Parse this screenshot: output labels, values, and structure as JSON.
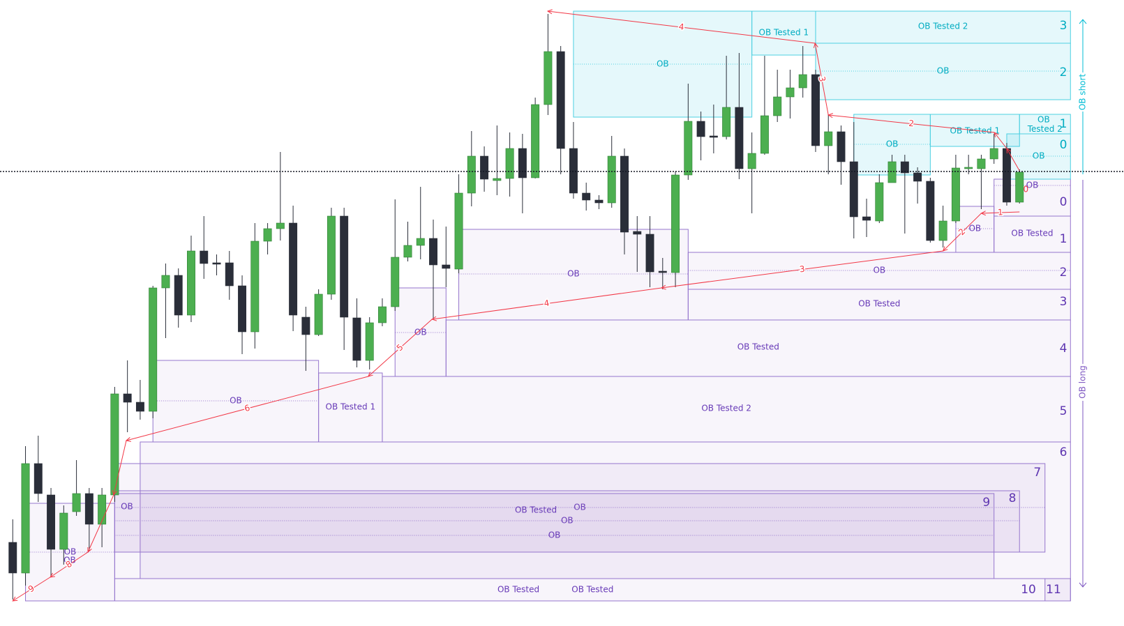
{
  "chart_data": {
    "type": "candlestick",
    "up_color": "#4caf50",
    "down_color": "#2a2e39",
    "xlim": [
      -1,
      87.2
    ],
    "ylim": [
      2,
      900
    ],
    "last_price": 654,
    "side_labels": {
      "short": "OB short",
      "long": "OB long"
    },
    "candles": [
      [
        122,
        155,
        40,
        78
      ],
      [
        78,
        260,
        60,
        235
      ],
      [
        235,
        275,
        180,
        192
      ],
      [
        190,
        200,
        72,
        112
      ],
      [
        112,
        175,
        90,
        164
      ],
      [
        166,
        240,
        160,
        192
      ],
      [
        192,
        200,
        110,
        148
      ],
      [
        148,
        200,
        115,
        190
      ],
      [
        190,
        345,
        180,
        335
      ],
      [
        335,
        383,
        280,
        323
      ],
      [
        323,
        355,
        298,
        310
      ],
      [
        310,
        490,
        300,
        487
      ],
      [
        487,
        522,
        415,
        505
      ],
      [
        505,
        515,
        430,
        448
      ],
      [
        448,
        562,
        438,
        540
      ],
      [
        540,
        590,
        500,
        522
      ],
      [
        523,
        535,
        505,
        521
      ],
      [
        523,
        540,
        470,
        490
      ],
      [
        490,
        505,
        392,
        424
      ],
      [
        424,
        580,
        400,
        554
      ],
      [
        554,
        580,
        535,
        572
      ],
      [
        572,
        682,
        555,
        580
      ],
      [
        580,
        605,
        425,
        448
      ],
      [
        445,
        460,
        368,
        420
      ],
      [
        420,
        485,
        418,
        478
      ],
      [
        478,
        602,
        470,
        590
      ],
      [
        590,
        602,
        398,
        445
      ],
      [
        444,
        472,
        373,
        383
      ],
      [
        383,
        445,
        370,
        437
      ],
      [
        437,
        472,
        432,
        460
      ],
      [
        460,
        614,
        454,
        531
      ],
      [
        531,
        582,
        525,
        548
      ],
      [
        548,
        632,
        528,
        558
      ],
      [
        558,
        585,
        442,
        520
      ],
      [
        520,
        575,
        488,
        515
      ],
      [
        514,
        650,
        508,
        623
      ],
      [
        623,
        712,
        604,
        676
      ],
      [
        676,
        690,
        625,
        643
      ],
      [
        641,
        720,
        620,
        644
      ],
      [
        644,
        710,
        618,
        687
      ],
      [
        687,
        708,
        594,
        645
      ],
      [
        645,
        760,
        644,
        750
      ],
      [
        750,
        880,
        735,
        826
      ],
      [
        826,
        834,
        650,
        687
      ],
      [
        687,
        725,
        615,
        623
      ],
      [
        623,
        638,
        598,
        613
      ],
      [
        613,
        620,
        600,
        609
      ],
      [
        609,
        705,
        602,
        676
      ],
      [
        676,
        687,
        535,
        567
      ],
      [
        568,
        590,
        510,
        564
      ],
      [
        564,
        590,
        488,
        510
      ],
      [
        511,
        530,
        485,
        509
      ],
      [
        509,
        654,
        488,
        649
      ],
      [
        649,
        780,
        642,
        726
      ],
      [
        726,
        740,
        670,
        704
      ],
      [
        705,
        750,
        680,
        703
      ],
      [
        704,
        820,
        700,
        746
      ],
      [
        746,
        824,
        643,
        658
      ],
      [
        658,
        710,
        594,
        680
      ],
      [
        680,
        820,
        678,
        734
      ],
      [
        734,
        800,
        725,
        761
      ],
      [
        761,
        800,
        730,
        774
      ],
      [
        774,
        834,
        760,
        793
      ],
      [
        793,
        800,
        682,
        691
      ],
      [
        691,
        735,
        650,
        711
      ],
      [
        711,
        720,
        635,
        668
      ],
      [
        668,
        725,
        558,
        589
      ],
      [
        589,
        615,
        560,
        584
      ],
      [
        583,
        650,
        580,
        638
      ],
      [
        638,
        678,
        638,
        668
      ],
      [
        668,
        678,
        565,
        652
      ],
      [
        652,
        660,
        608,
        640
      ],
      [
        640,
        645,
        552,
        555
      ],
      [
        555,
        605,
        545,
        583
      ],
      [
        583,
        678,
        580,
        659
      ],
      [
        658,
        678,
        650,
        660
      ],
      [
        658,
        678,
        600,
        672
      ],
      [
        672,
        708,
        665,
        687
      ],
      [
        687,
        695,
        605,
        610
      ],
      [
        610,
        657,
        608,
        653
      ]
    ],
    "zones": [
      {
        "side": "long",
        "x0": 10,
        "x1": 83,
        "top": 266,
        "bottom": 70
      },
      {
        "side": "long",
        "x0": 8,
        "x1": 81,
        "top": 235,
        "bottom": 108,
        "label": "OB",
        "mid": 172
      },
      {
        "side": "long",
        "x0": 8,
        "x1": 79,
        "top": 196,
        "bottom": 108,
        "label": "OB",
        "mid": 153
      },
      {
        "side": "long",
        "x0": 8,
        "x1": 77,
        "top": 192,
        "bottom": 70,
        "label": "OB",
        "mid": 132
      },
      {
        "side": "long",
        "x0": 1,
        "x1": 8,
        "top": 178,
        "bottom": 38,
        "label": "OB",
        "mid": 108
      },
      {
        "side": "long",
        "x0": 8,
        "x1": 83,
        "top": 70,
        "bottom": 38,
        "label": "OB Tested",
        "mid": 54
      },
      {
        "side": "long",
        "x0": 81,
        "x1": 83,
        "top": 70,
        "bottom": 38
      },
      {
        "side": "long",
        "x0": 11,
        "x1": 24,
        "top": 383,
        "bottom": 266,
        "label": "OB",
        "mid": 325
      },
      {
        "side": "long",
        "x0": 24,
        "x1": 29,
        "top": 365,
        "bottom": 266,
        "label": "OB Tested 1",
        "mid": 316
      },
      {
        "side": "long",
        "x0": 29,
        "x1": 83,
        "top": 360,
        "bottom": 266,
        "label": "OB Tested 2",
        "mid": 314
      },
      {
        "side": "long",
        "x0": 30,
        "x1": 34,
        "top": 487,
        "bottom": 360,
        "label": "OB",
        "mid": 423
      },
      {
        "side": "long",
        "x0": 34,
        "x1": 83,
        "top": 441,
        "bottom": 360,
        "label": "OB Tested",
        "mid": 402
      },
      {
        "side": "long",
        "x0": 35,
        "x1": 53,
        "top": 571,
        "bottom": 441,
        "label": "OB",
        "mid": 507
      },
      {
        "side": "long",
        "x0": 53,
        "x1": 83,
        "top": 538,
        "bottom": 485,
        "label": "OB",
        "mid": 512
      },
      {
        "side": "long",
        "x0": 53,
        "x1": 83,
        "top": 485,
        "bottom": 441,
        "label": "OB Tested",
        "mid": 464
      },
      {
        "side": "long",
        "x0": 74,
        "x1": 77,
        "top": 604,
        "bottom": 538,
        "label": "OB",
        "mid": 572
      },
      {
        "side": "long",
        "x0": 77,
        "x1": 83,
        "top": 643,
        "bottom": 590,
        "label": "OB",
        "mid": 634
      },
      {
        "side": "long",
        "x0": 77,
        "x1": 83,
        "top": 590,
        "bottom": 538,
        "label": "OB Tested",
        "mid": 565
      },
      {
        "side": "short",
        "x0": 44,
        "x1": 58,
        "top": 884,
        "bottom": 732,
        "label": "OB",
        "mid": 808
      },
      {
        "side": "short",
        "x0": 58,
        "x1": 63,
        "top": 884,
        "bottom": 821,
        "label": "OB Tested 1",
        "mid": 853
      },
      {
        "side": "short",
        "x0": 63,
        "x1": 83,
        "top": 884,
        "bottom": 838,
        "label": "OB Tested 2",
        "mid": 862
      },
      {
        "side": "short",
        "x0": 63,
        "x1": 83,
        "top": 838,
        "bottom": 757,
        "label": "OB",
        "mid": 798
      },
      {
        "side": "short",
        "x0": 66,
        "x1": 72,
        "top": 736,
        "bottom": 649,
        "label": "OB",
        "mid": 693
      },
      {
        "side": "short",
        "x0": 72,
        "x1": 79,
        "top": 736,
        "bottom": 690,
        "label": "OB Tested 1",
        "mid": 712
      },
      {
        "side": "short",
        "x0": 79,
        "x1": 83,
        "top": 736,
        "bottom": 708,
        "label": "OB Tested 2",
        "mid": 722
      },
      {
        "side": "short",
        "x0": 78,
        "x1": 83,
        "top": 708,
        "bottom": 643,
        "label": "OB",
        "mid": 676
      }
    ],
    "annotations": [
      {
        "text": "OB Tested",
        "x": 41.05,
        "y": 168
      },
      {
        "text": "OB",
        "x": 4.47,
        "y": 96
      },
      {
        "text": "OB Tested",
        "x": 39.68,
        "y": 54
      },
      {
        "text": "OB",
        "x": 8.96,
        "y": 173
      }
    ],
    "levels": [
      {
        "side": "short",
        "text": "3",
        "x": 82.44,
        "y": 863
      },
      {
        "side": "short",
        "text": "2",
        "x": 82.44,
        "y": 796
      },
      {
        "side": "short",
        "text": "1",
        "x": 82.44,
        "y": 722
      },
      {
        "side": "short",
        "text": "0",
        "x": 82.44,
        "y": 692
      },
      {
        "side": "long",
        "text": "0",
        "x": 82.44,
        "y": 610
      },
      {
        "side": "long",
        "text": "1",
        "x": 82.44,
        "y": 557
      },
      {
        "side": "long",
        "text": "2",
        "x": 82.44,
        "y": 509
      },
      {
        "side": "long",
        "text": "3",
        "x": 82.44,
        "y": 467
      },
      {
        "side": "long",
        "text": "4",
        "x": 82.44,
        "y": 400
      },
      {
        "side": "long",
        "text": "5",
        "x": 82.44,
        "y": 310
      },
      {
        "side": "long",
        "text": "6",
        "x": 82.44,
        "y": 251
      },
      {
        "side": "long",
        "text": "7",
        "x": 80.4,
        "y": 222
      },
      {
        "side": "long",
        "text": "8",
        "x": 78.44,
        "y": 185
      },
      {
        "side": "long",
        "text": "9",
        "x": 76.4,
        "y": 179
      },
      {
        "side": "long",
        "text": "10",
        "x": 79.7,
        "y": 54
      },
      {
        "side": "long",
        "text": "11",
        "x": 81.67,
        "y": 54
      }
    ],
    "swings": [
      {
        "from": [
          0,
          38
        ],
        "to": [
          2.94,
          72
        ],
        "label": "9"
      },
      {
        "from": [
          2.94,
          72
        ],
        "to": [
          5.9,
          108
        ],
        "label": "8"
      },
      {
        "from": [
          5.9,
          108
        ],
        "to": [
          7.92,
          190
        ]
      },
      {
        "from": [
          7.92,
          190
        ],
        "to": [
          8.91,
          268
        ]
      },
      {
        "from": [
          8.91,
          268
        ],
        "to": [
          27.9,
          360
        ],
        "label": "6"
      },
      {
        "from": [
          27.9,
          360
        ],
        "to": [
          32.9,
          442
        ],
        "label": "5"
      },
      {
        "from": [
          32.9,
          442
        ],
        "to": [
          50.9,
          487
        ],
        "label": "4"
      },
      {
        "from": [
          50.9,
          487
        ],
        "to": [
          73.0,
          540
        ],
        "label": "3"
      },
      {
        "from": [
          73.0,
          540
        ],
        "to": [
          76.0,
          594
        ],
        "label": "2"
      },
      {
        "from": [
          76.0,
          594
        ],
        "to": [
          79.0,
          596
        ],
        "label": "1"
      },
      {
        "from": [
          41.98,
          884
        ],
        "to": [
          62.96,
          838
        ],
        "label": "4"
      },
      {
        "from": [
          62.96,
          838
        ],
        "to": [
          64.0,
          735
        ],
        "label": "3"
      },
      {
        "from": [
          64.0,
          735
        ],
        "to": [
          77.02,
          710
        ],
        "label": "2"
      },
      {
        "from": [
          77.02,
          710
        ],
        "to": [
          78.0,
          687
        ]
      },
      {
        "from": [
          78.0,
          687
        ],
        "to": [
          79.0,
          655
        ]
      }
    ],
    "marker": {
      "text": "0",
      "x": 79.5,
      "y": 628
    }
  }
}
